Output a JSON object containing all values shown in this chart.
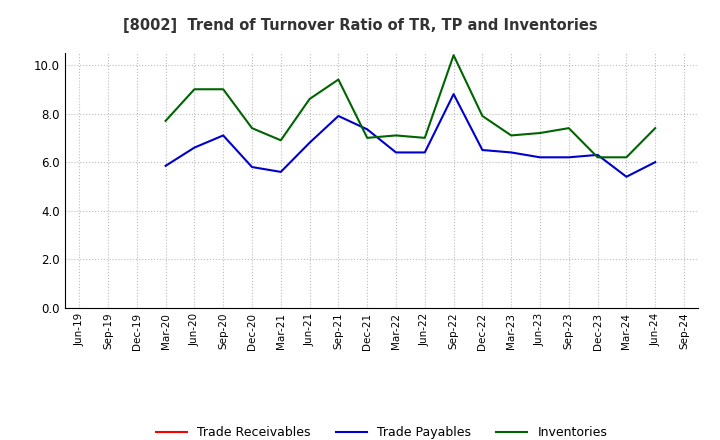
{
  "title": "[8002]  Trend of Turnover Ratio of TR, TP and Inventories",
  "x_labels": [
    "Jun-19",
    "Sep-19",
    "Dec-19",
    "Mar-20",
    "Jun-20",
    "Sep-20",
    "Dec-20",
    "Mar-21",
    "Jun-21",
    "Sep-21",
    "Dec-21",
    "Mar-22",
    "Jun-22",
    "Sep-22",
    "Dec-22",
    "Mar-23",
    "Jun-23",
    "Sep-23",
    "Dec-23",
    "Mar-24",
    "Jun-24",
    "Sep-24"
  ],
  "trade_receivables": [
    null,
    null,
    null,
    null,
    null,
    null,
    null,
    null,
    null,
    null,
    null,
    null,
    null,
    null,
    null,
    null,
    null,
    null,
    null,
    null,
    null,
    null
  ],
  "trade_payables": [
    null,
    null,
    null,
    5.85,
    6.6,
    7.1,
    5.8,
    5.6,
    6.8,
    7.9,
    7.35,
    6.4,
    6.4,
    8.8,
    6.5,
    6.4,
    6.2,
    6.2,
    6.3,
    5.4,
    6.0,
    null
  ],
  "inventories": [
    null,
    null,
    null,
    7.7,
    9.0,
    9.0,
    7.4,
    6.9,
    8.6,
    9.4,
    7.0,
    7.1,
    7.0,
    10.4,
    7.9,
    7.1,
    7.2,
    7.4,
    6.2,
    6.2,
    7.4,
    null
  ],
  "ylim": [
    0.0,
    10.5
  ],
  "yticks": [
    0.0,
    2.0,
    4.0,
    6.0,
    8.0,
    10.0
  ],
  "color_tr": "#ff0000",
  "color_tp": "#0000cd",
  "color_inv": "#006400",
  "legend_labels": [
    "Trade Receivables",
    "Trade Payables",
    "Inventories"
  ],
  "background_color": "#ffffff",
  "grid_color": "#bbbbbb"
}
